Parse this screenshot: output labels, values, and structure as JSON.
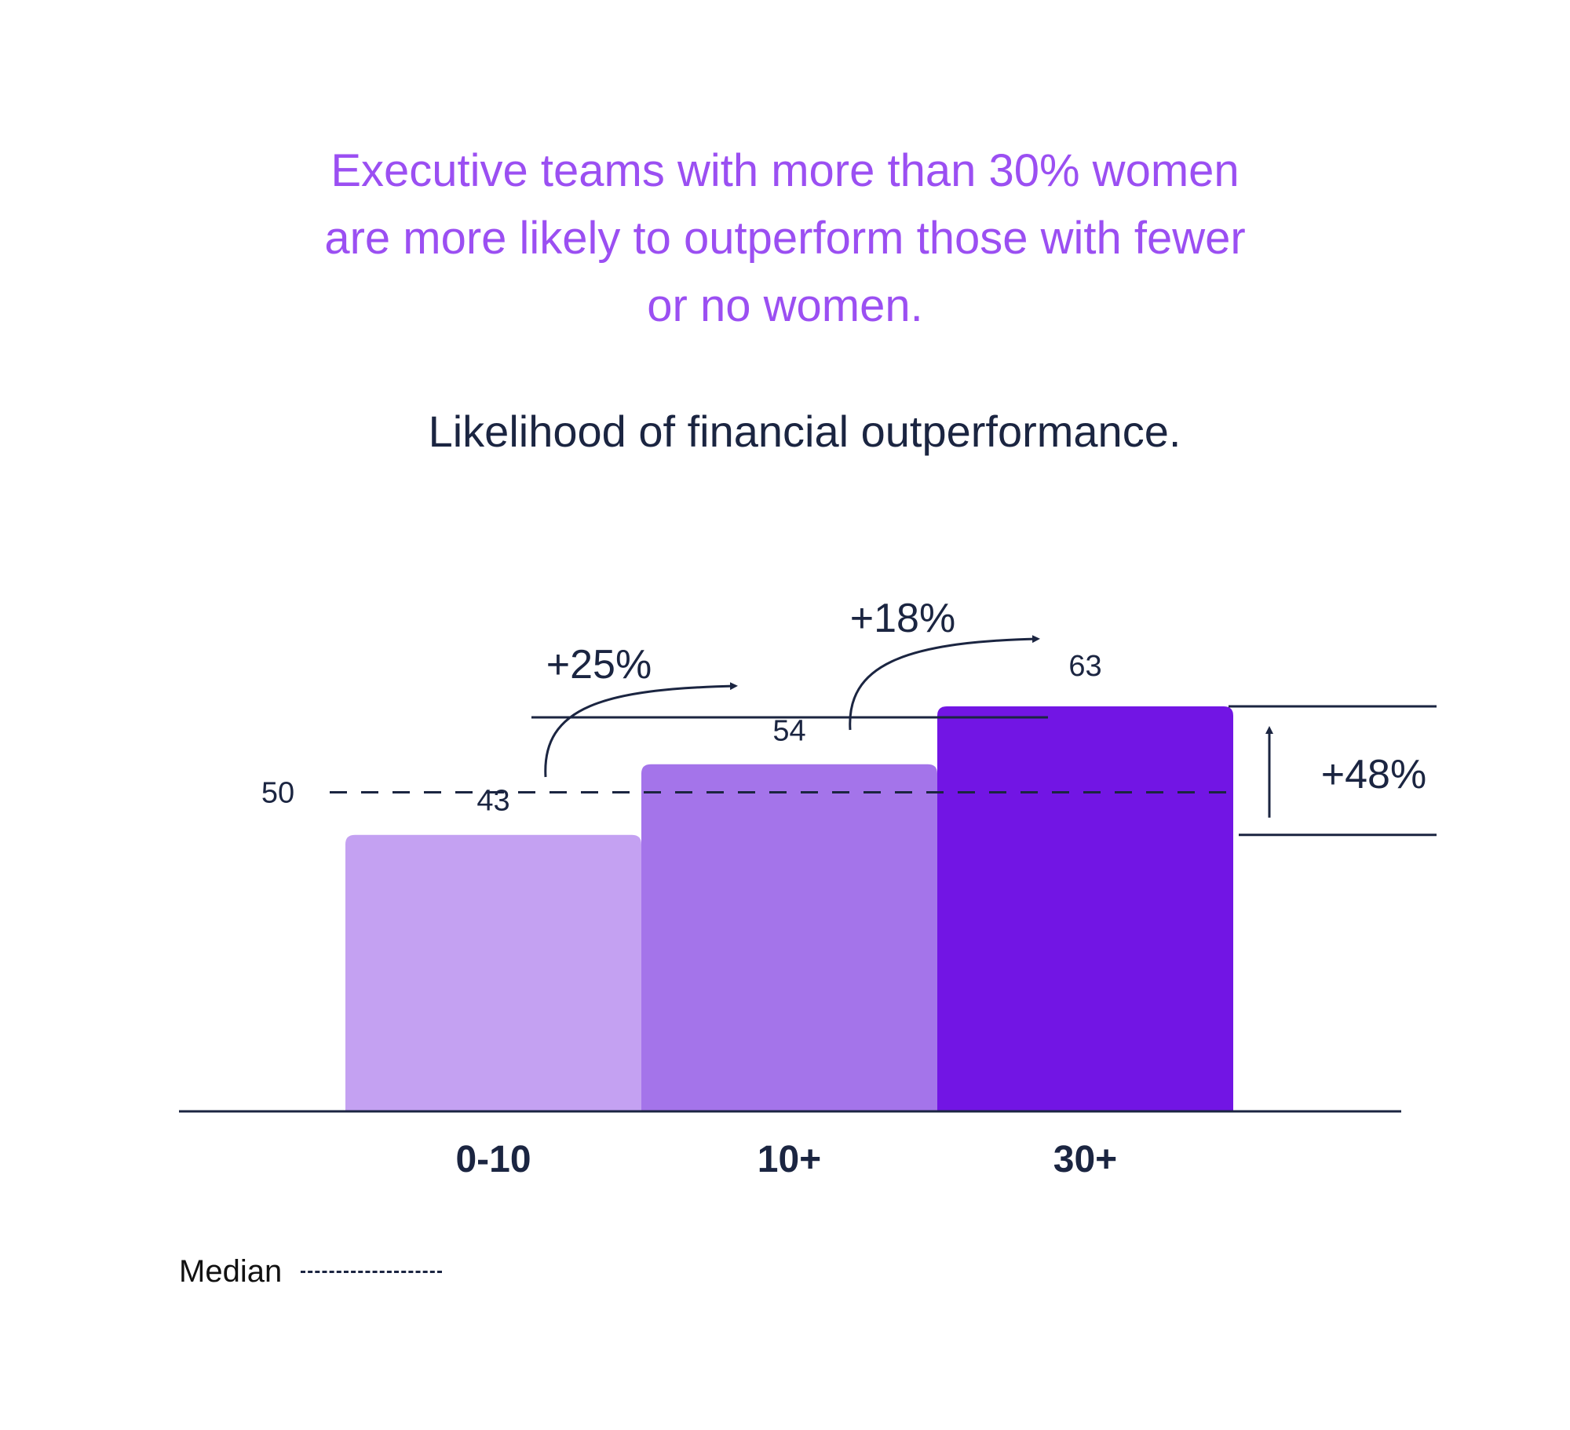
{
  "headline": [
    "Executive teams with more than 30% women",
    "are more likely to outperform those with fewer",
    "or no women."
  ],
  "colors": {
    "headline": "#9b4ff2",
    "text": "#1b2541",
    "bars": [
      "#c4a1f2",
      "#a474ea",
      "#7215e4"
    ]
  },
  "chart_data": {
    "type": "bar",
    "title": "Likelihood of financial outperformance.",
    "categories": [
      "0-10",
      "10+",
      "30+"
    ],
    "values": [
      43,
      54,
      63
    ],
    "value_labels": [
      "43",
      "54",
      "63"
    ],
    "median": {
      "value": 50,
      "label": "50",
      "legend": "Median"
    },
    "ylim": [
      0,
      80
    ],
    "grid": false,
    "annotations": {
      "step1": "+25%",
      "step2": "+18%",
      "overall": "+48%"
    }
  }
}
